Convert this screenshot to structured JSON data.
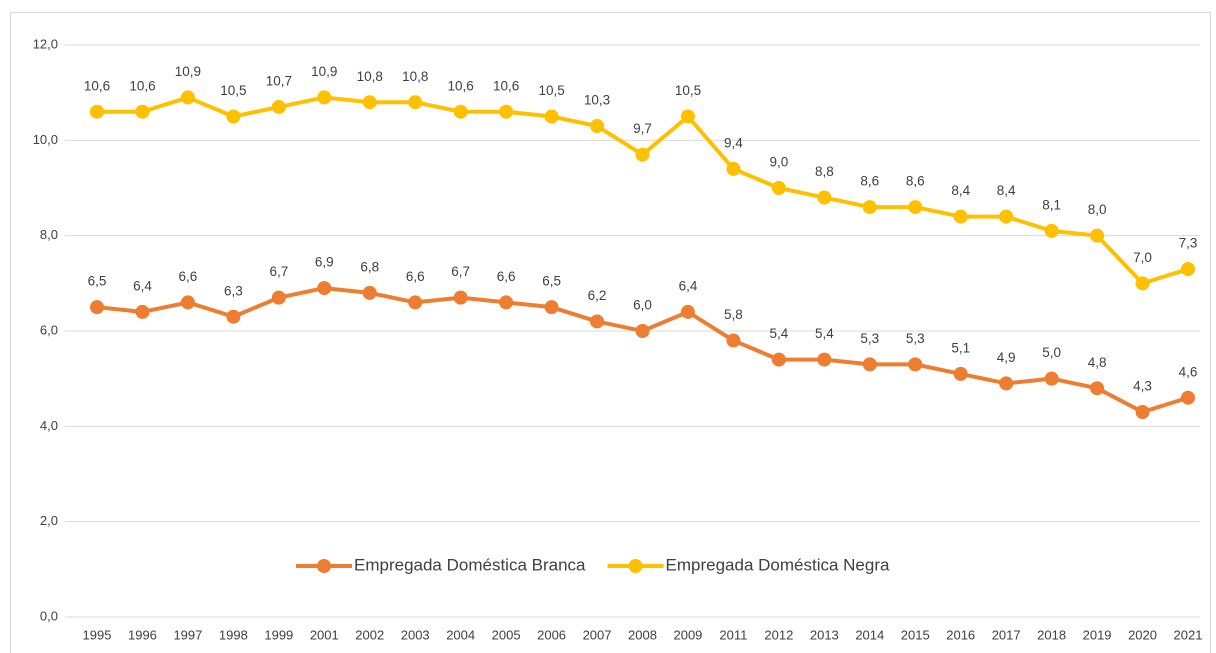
{
  "chart_data": {
    "type": "line",
    "categories": [
      "1995",
      "1996",
      "1997",
      "1998",
      "1999",
      "2001",
      "2002",
      "2003",
      "2004",
      "2005",
      "2006",
      "2007",
      "2008",
      "2009",
      "2011",
      "2012",
      "2013",
      "2014",
      "2015",
      "2016",
      "2017",
      "2018",
      "2019",
      "2020",
      "2021"
    ],
    "series": [
      {
        "name": "Empregada Doméstica Branca",
        "color": "#ed7d31",
        "values": [
          6.5,
          6.4,
          6.6,
          6.3,
          6.7,
          6.9,
          6.8,
          6.6,
          6.7,
          6.6,
          6.5,
          6.2,
          6.0,
          6.4,
          5.8,
          5.4,
          5.4,
          5.3,
          5.3,
          5.1,
          4.9,
          5.0,
          4.8,
          4.3,
          4.6
        ],
        "value_labels": [
          "6,5",
          "6,4",
          "6,6",
          "6,3",
          "6,7",
          "6,9",
          "6,8",
          "6,6",
          "6,7",
          "6,6",
          "6,5",
          "6,2",
          "6,0",
          "6,4",
          "5,8",
          "5,4",
          "5,4",
          "5,3",
          "5,3",
          "5,1",
          "4,9",
          "5,0",
          "4,8",
          "4,3",
          "4,6"
        ]
      },
      {
        "name": "Empregada Doméstica Negra",
        "color": "#ffc000",
        "values": [
          10.6,
          10.6,
          10.9,
          10.5,
          10.7,
          10.9,
          10.8,
          10.8,
          10.6,
          10.6,
          10.5,
          10.3,
          9.7,
          10.5,
          9.4,
          9.0,
          8.8,
          8.6,
          8.6,
          8.4,
          8.4,
          8.1,
          8.0,
          7.0,
          7.3
        ],
        "value_labels": [
          "10,6",
          "10,6",
          "10,9",
          "10,5",
          "10,7",
          "10,9",
          "10,8",
          "10,8",
          "10,6",
          "10,6",
          "10,5",
          "10,3",
          "9,7",
          "10,5",
          "9,4",
          "9,0",
          "8,8",
          "8,6",
          "8,6",
          "8,4",
          "8,4",
          "8,1",
          "8,0",
          "7,0",
          "7,3"
        ]
      }
    ],
    "ylim": [
      0,
      12
    ],
    "yticks": [
      {
        "value": 0,
        "label": "0,0"
      },
      {
        "value": 2,
        "label": "2,0"
      },
      {
        "value": 4,
        "label": "4,0"
      },
      {
        "value": 6,
        "label": "6,0"
      },
      {
        "value": 8,
        "label": "8,0"
      },
      {
        "value": 10,
        "label": "10,0"
      },
      {
        "value": 12,
        "label": "12,0"
      }
    ],
    "grid": true
  }
}
